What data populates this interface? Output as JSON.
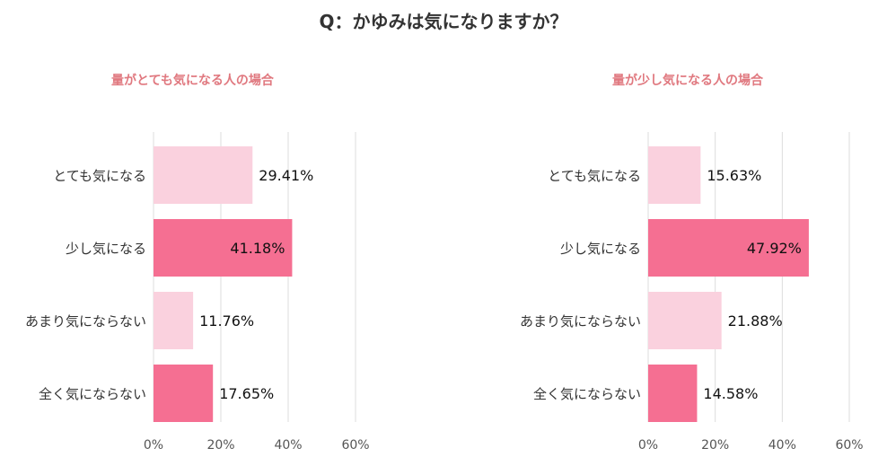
{
  "title": "Q：かゆみは気になりますか？",
  "colors": {
    "light": "#fad1de",
    "dark": "#f56f92",
    "title_pink": "#e0787f",
    "grid": "#dddddd"
  },
  "chart_data": [
    {
      "type": "bar",
      "orientation": "horizontal",
      "title": "量がとても気になる人の場合",
      "categories": [
        "とても気になる",
        "少し気になる",
        "あまり気にならない",
        "全く気にならない"
      ],
      "values": [
        29.41,
        41.18,
        11.76,
        17.65
      ],
      "value_labels": [
        "29.41%",
        "41.18%",
        "11.76%",
        "17.65%"
      ],
      "bar_colors": [
        "light",
        "dark",
        "light",
        "dark"
      ],
      "xlim": [
        0,
        60
      ],
      "xticks": [
        "0%",
        "20%",
        "40%",
        "60%"
      ],
      "grid": true
    },
    {
      "type": "bar",
      "orientation": "horizontal",
      "title": "量が少し気になる人の場合",
      "categories": [
        "とても気になる",
        "少し気になる",
        "あまり気にならない",
        "全く気にならない"
      ],
      "values": [
        15.63,
        47.92,
        21.88,
        14.58
      ],
      "value_labels": [
        "15.63%",
        "47.92%",
        "21.88%",
        "14.58%"
      ],
      "bar_colors": [
        "light",
        "dark",
        "light",
        "dark"
      ],
      "xlim": [
        0,
        60
      ],
      "xticks": [
        "0%",
        "20%",
        "40%",
        "60%"
      ],
      "grid": true
    }
  ]
}
